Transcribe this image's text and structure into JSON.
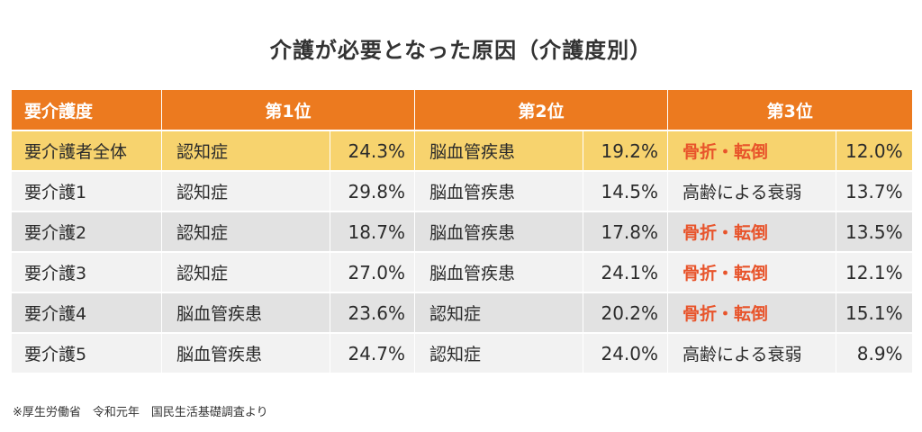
{
  "title": "介護が必要となった原因（介護度別）",
  "colors": {
    "header_bg": "#ec7a1f",
    "highlight_row_bg": "#f7d36e",
    "light_row_bg": "#f2f2f2",
    "dark_row_bg": "#e2e2e2",
    "emphasis_text": "#e8542b"
  },
  "chart_data": {
    "type": "table",
    "headers": [
      "要介護度",
      "第1位",
      "第2位",
      "第3位"
    ],
    "rows": [
      {
        "category": "要介護者全体",
        "ranks": [
          {
            "cause": "認知症",
            "pct": "24.3%",
            "emphasis": false
          },
          {
            "cause": "脳血管疾患",
            "pct": "19.2%",
            "emphasis": false
          },
          {
            "cause": "骨折・転倒",
            "pct": "12.0%",
            "emphasis": true
          }
        ]
      },
      {
        "category": "要介護1",
        "ranks": [
          {
            "cause": "認知症",
            "pct": "29.8%",
            "emphasis": false
          },
          {
            "cause": "脳血管疾患",
            "pct": "14.5%",
            "emphasis": false
          },
          {
            "cause": "高齢による衰弱",
            "pct": "13.7%",
            "emphasis": false
          }
        ]
      },
      {
        "category": "要介護2",
        "ranks": [
          {
            "cause": "認知症",
            "pct": "18.7%",
            "emphasis": false
          },
          {
            "cause": "脳血管疾患",
            "pct": "17.8%",
            "emphasis": false
          },
          {
            "cause": "骨折・転倒",
            "pct": "13.5%",
            "emphasis": true
          }
        ]
      },
      {
        "category": "要介護3",
        "ranks": [
          {
            "cause": "認知症",
            "pct": "27.0%",
            "emphasis": false
          },
          {
            "cause": "脳血管疾患",
            "pct": "24.1%",
            "emphasis": false
          },
          {
            "cause": "骨折・転倒",
            "pct": "12.1%",
            "emphasis": true
          }
        ]
      },
      {
        "category": "要介護4",
        "ranks": [
          {
            "cause": "脳血管疾患",
            "pct": "23.6%",
            "emphasis": false
          },
          {
            "cause": "認知症",
            "pct": "20.2%",
            "emphasis": false
          },
          {
            "cause": "骨折・転倒",
            "pct": "15.1%",
            "emphasis": true
          }
        ]
      },
      {
        "category": "要介護5",
        "ranks": [
          {
            "cause": "脳血管疾患",
            "pct": "24.7%",
            "emphasis": false
          },
          {
            "cause": "認知症",
            "pct": "24.0%",
            "emphasis": false
          },
          {
            "cause": "高齢による衰弱",
            "pct": "8.9%",
            "emphasis": false
          }
        ]
      }
    ]
  },
  "footnote": "※厚生労働省　令和元年　国民生活基礎調査より"
}
